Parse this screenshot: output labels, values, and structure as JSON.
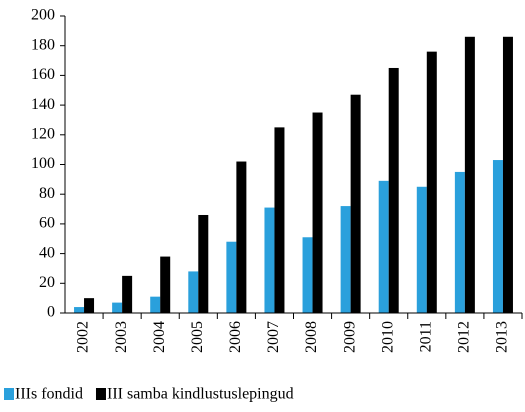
{
  "chart_data": {
    "type": "bar",
    "categories": [
      "2002",
      "2003",
      "2004",
      "2005",
      "2006",
      "2007",
      "2008",
      "2009",
      "2010",
      "2011",
      "2012",
      "2013"
    ],
    "series": [
      {
        "name": "IIIs fondid",
        "color": "#2aa0dc",
        "values": [
          4,
          7,
          11,
          28,
          48,
          71,
          51,
          72,
          89,
          85,
          95,
          103
        ]
      },
      {
        "name": "III samba kindlustuslepingud",
        "color": "#000000",
        "values": [
          10,
          25,
          38,
          66,
          102,
          125,
          135,
          147,
          165,
          176,
          186,
          186
        ]
      }
    ],
    "ylim": [
      0,
      200
    ],
    "yticks": [
      0,
      20,
      40,
      60,
      80,
      100,
      120,
      140,
      160,
      180,
      200
    ],
    "grid": false
  }
}
